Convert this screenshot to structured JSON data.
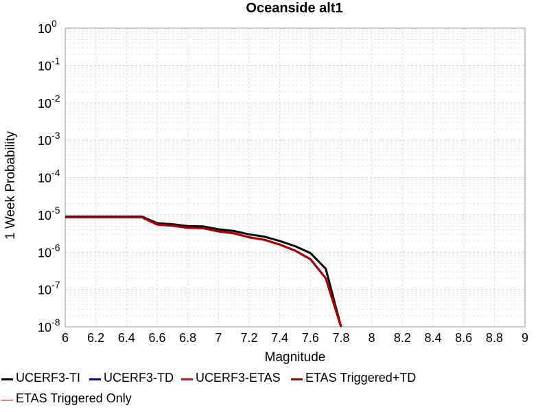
{
  "chart_data": {
    "type": "line",
    "title": "Oceanside alt1",
    "xlabel": "Magnitude",
    "ylabel": "1 Week Probability",
    "xlim": [
      6,
      9
    ],
    "ylim": [
      1e-08,
      1
    ],
    "yscale": "log",
    "grid": true,
    "legend_position": "bottom",
    "x_ticks": [
      "6",
      "6.2",
      "6.4",
      "6.6",
      "6.8",
      "7",
      "7.2",
      "7.4",
      "7.6",
      "7.8",
      "8",
      "8.2",
      "8.4",
      "8.6",
      "8.8",
      "9"
    ],
    "y_ticks": [
      {
        "base": "10",
        "exp": "0"
      },
      {
        "base": "10",
        "exp": "-1"
      },
      {
        "base": "10",
        "exp": "-2"
      },
      {
        "base": "10",
        "exp": "-3"
      },
      {
        "base": "10",
        "exp": "-4"
      },
      {
        "base": "10",
        "exp": "-5"
      },
      {
        "base": "10",
        "exp": "-6"
      },
      {
        "base": "10",
        "exp": "-7"
      },
      {
        "base": "10",
        "exp": "-8"
      }
    ],
    "series": [
      {
        "name": "UCERF3-TI",
        "color": "#000000",
        "x": [
          6.0,
          6.1,
          6.2,
          6.3,
          6.4,
          6.5,
          6.6,
          6.7,
          6.8,
          6.9,
          7.0,
          7.1,
          7.2,
          7.3,
          7.4,
          7.5,
          7.6,
          7.7,
          7.8
        ],
        "y": [
          9e-06,
          9e-06,
          9e-06,
          9e-06,
          9e-06,
          9e-06,
          6e-06,
          5.6e-06,
          5e-06,
          4.9e-06,
          4.1e-06,
          3.7e-06,
          3e-06,
          2.6e-06,
          2e-06,
          1.45e-06,
          9.5e-07,
          3.6e-07,
          1e-08
        ]
      },
      {
        "name": "UCERF3-TD",
        "color": "#0000cc",
        "x": [
          6.0,
          6.1,
          6.2,
          6.3,
          6.4,
          6.5,
          6.6,
          6.7,
          6.8,
          6.9,
          7.0,
          7.1,
          7.2,
          7.3,
          7.4,
          7.5,
          7.6,
          7.7,
          7.8
        ],
        "y": [
          8.6e-06,
          8.6e-06,
          8.6e-06,
          8.6e-06,
          8.6e-06,
          8.6e-06,
          5.5e-06,
          5.1e-06,
          4.5e-06,
          4.4e-06,
          3.6e-06,
          3.2e-06,
          2.5e-06,
          2.15e-06,
          1.6e-06,
          1.1e-06,
          6.5e-07,
          2e-07,
          1e-08
        ]
      },
      {
        "name": "UCERF3-ETAS",
        "color": "#ff0000",
        "x": [
          6.0,
          6.1,
          6.2,
          6.3,
          6.4,
          6.5,
          6.6,
          6.7,
          6.8,
          6.9,
          7.0,
          7.1,
          7.2,
          7.3,
          7.4,
          7.5,
          7.6,
          7.7,
          7.8
        ],
        "y": [
          8.6e-06,
          8.6e-06,
          8.6e-06,
          8.6e-06,
          8.6e-06,
          8.6e-06,
          5.5e-06,
          5.1e-06,
          4.5e-06,
          4.4e-06,
          3.6e-06,
          3.2e-06,
          2.5e-06,
          2.15e-06,
          1.6e-06,
          1.1e-06,
          6.5e-07,
          2e-07,
          1e-08
        ]
      },
      {
        "name": "ETAS Triggered+TD",
        "color": "#aa0000",
        "x": [
          6.0,
          6.1,
          6.2,
          6.3,
          6.4,
          6.5,
          6.6,
          6.7,
          6.8,
          6.9,
          7.0,
          7.1,
          7.2,
          7.3,
          7.4,
          7.5,
          7.6,
          7.7,
          7.8
        ],
        "y": [
          8.6e-06,
          8.6e-06,
          8.6e-06,
          8.6e-06,
          8.6e-06,
          8.6e-06,
          5.5e-06,
          5.1e-06,
          4.5e-06,
          4.4e-06,
          3.6e-06,
          3.2e-06,
          2.5e-06,
          2.15e-06,
          1.6e-06,
          1.1e-06,
          6.5e-07,
          2e-07,
          1e-08
        ]
      },
      {
        "name": "ETAS Triggered Only",
        "color": "#f08080",
        "x": [],
        "y": []
      }
    ]
  }
}
